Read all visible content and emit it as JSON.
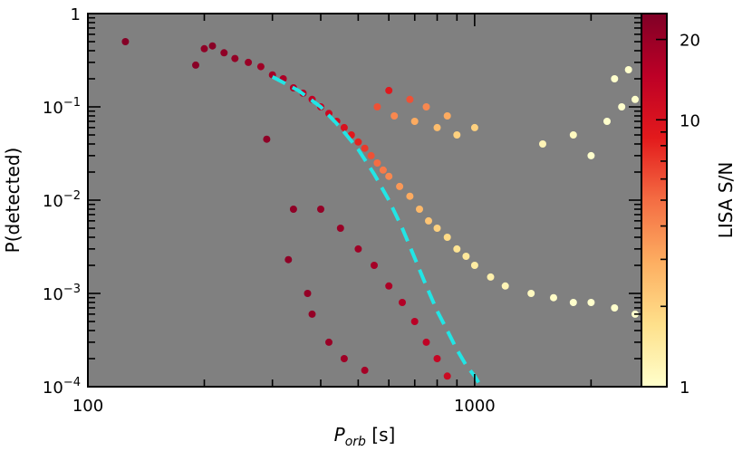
{
  "chart_data": {
    "type": "scatter",
    "xlabel": {
      "main": "P",
      "sub": "orb",
      "unit": " [s]"
    },
    "ylabel": "P(detected)",
    "x_scale": "log",
    "y_scale": "log",
    "xlim": [
      100,
      2700
    ],
    "ylim": [
      0.0001,
      1
    ],
    "x_ticks": [
      {
        "value": 100,
        "label": "100"
      },
      {
        "value": 1000,
        "label": "1000"
      }
    ],
    "y_ticks": [
      {
        "value": 1,
        "base": "1",
        "exp": ""
      },
      {
        "value": 0.1,
        "base": "10",
        "exp": "−1"
      },
      {
        "value": 0.01,
        "base": "10",
        "exp": "−2"
      },
      {
        "value": 0.001,
        "base": "10",
        "exp": "−3"
      },
      {
        "value": 0.0001,
        "base": "10",
        "exp": "−4"
      }
    ],
    "background_color": "#808080",
    "colorbar": {
      "label": "LISA S/N",
      "scale": "log",
      "range": [
        1,
        25
      ],
      "ticks": [
        {
          "value": 1,
          "label": "1"
        },
        {
          "value": 10,
          "label": "10"
        },
        {
          "value": 20,
          "label": "20"
        }
      ],
      "colormap": [
        "#ffffcc",
        "#fee08b",
        "#fdae61",
        "#f46d43",
        "#e31a1c",
        "#bd0026",
        "#800026"
      ]
    },
    "fit_curve": {
      "style": "dashed",
      "color": "#22e5e5",
      "points": [
        [
          300,
          0.21
        ],
        [
          350,
          0.15
        ],
        [
          400,
          0.1
        ],
        [
          450,
          0.06
        ],
        [
          500,
          0.035
        ],
        [
          550,
          0.019
        ],
        [
          600,
          0.01
        ],
        [
          650,
          0.005
        ],
        [
          700,
          0.0024
        ],
        [
          750,
          0.0012
        ],
        [
          800,
          0.00065
        ],
        [
          850,
          0.0004
        ],
        [
          900,
          0.00025
        ],
        [
          950,
          0.00017
        ],
        [
          1000,
          0.00013
        ],
        [
          1040,
          0.0001
        ]
      ]
    },
    "points": [
      [
        125,
        0.5,
        24
      ],
      [
        190,
        0.28,
        23
      ],
      [
        200,
        0.42,
        22
      ],
      [
        210,
        0.45,
        23
      ],
      [
        225,
        0.38,
        22
      ],
      [
        240,
        0.33,
        21
      ],
      [
        260,
        0.3,
        20
      ],
      [
        280,
        0.27,
        19
      ],
      [
        300,
        0.22,
        18
      ],
      [
        320,
        0.2,
        17
      ],
      [
        340,
        0.16,
        16
      ],
      [
        360,
        0.14,
        15
      ],
      [
        380,
        0.12,
        14
      ],
      [
        400,
        0.1,
        13
      ],
      [
        420,
        0.085,
        12
      ],
      [
        440,
        0.07,
        11
      ],
      [
        460,
        0.06,
        10
      ],
      [
        480,
        0.05,
        9
      ],
      [
        500,
        0.042,
        8
      ],
      [
        520,
        0.036,
        7
      ],
      [
        540,
        0.03,
        6
      ],
      [
        560,
        0.025,
        5
      ],
      [
        580,
        0.021,
        4.5
      ],
      [
        600,
        0.018,
        4
      ],
      [
        640,
        0.014,
        3.5
      ],
      [
        680,
        0.011,
        3
      ],
      [
        720,
        0.008,
        2.6
      ],
      [
        760,
        0.006,
        2.3
      ],
      [
        800,
        0.005,
        2
      ],
      [
        850,
        0.004,
        1.8
      ],
      [
        900,
        0.003,
        1.6
      ],
      [
        950,
        0.0025,
        1.5
      ],
      [
        1000,
        0.002,
        1.4
      ],
      [
        1100,
        0.0015,
        1.3
      ],
      [
        1200,
        0.0012,
        1.2
      ],
      [
        1400,
        0.001,
        1.1
      ],
      [
        1600,
        0.0009,
        1.05
      ],
      [
        1800,
        0.0008,
        1.0
      ],
      [
        2000,
        0.0008,
        1.0
      ],
      [
        2300,
        0.0007,
        1.0
      ],
      [
        2600,
        0.0006,
        1.0
      ],
      [
        400,
        0.008,
        21
      ],
      [
        450,
        0.005,
        20
      ],
      [
        500,
        0.003,
        19
      ],
      [
        550,
        0.002,
        18
      ],
      [
        600,
        0.0012,
        17
      ],
      [
        650,
        0.0008,
        16
      ],
      [
        700,
        0.0005,
        15
      ],
      [
        750,
        0.0003,
        14
      ],
      [
        800,
        0.0002,
        13
      ],
      [
        850,
        0.00013,
        12
      ],
      [
        380,
        0.0006,
        21
      ],
      [
        420,
        0.0003,
        20
      ],
      [
        460,
        0.0002,
        19
      ],
      [
        520,
        0.00015,
        18
      ],
      [
        330,
        0.0023,
        22
      ],
      [
        370,
        0.001,
        21
      ],
      [
        340,
        0.008,
        22
      ],
      [
        290,
        0.045,
        22
      ],
      [
        560,
        0.1,
        6
      ],
      [
        620,
        0.08,
        4
      ],
      [
        700,
        0.07,
        3
      ],
      [
        800,
        0.06,
        2.5
      ],
      [
        900,
        0.05,
        2
      ],
      [
        600,
        0.15,
        9
      ],
      [
        680,
        0.12,
        6
      ],
      [
        750,
        0.1,
        4
      ],
      [
        850,
        0.08,
        3
      ],
      [
        1000,
        0.06,
        2
      ],
      [
        1500,
        0.04,
        1.2
      ],
      [
        1800,
        0.05,
        1.1
      ],
      [
        2000,
        0.03,
        1.0
      ],
      [
        2200,
        0.07,
        1.0
      ],
      [
        2400,
        0.1,
        1.0
      ],
      [
        2600,
        0.12,
        1.0
      ],
      [
        2300,
        0.2,
        1.0
      ],
      [
        2500,
        0.25,
        1.0
      ]
    ]
  }
}
